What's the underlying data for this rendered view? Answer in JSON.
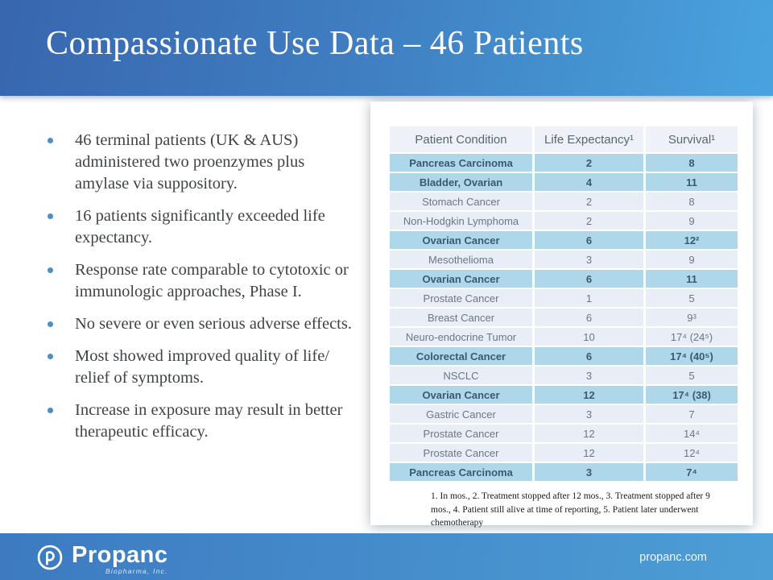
{
  "slide": {
    "title": "Compassionate Use Data – 46 Patients",
    "footer": {
      "brand": "Propanc",
      "brand_sub": "Biopharma, Inc.",
      "website": "propanc.com"
    },
    "colors": {
      "header_gradient_start": "#3866af",
      "header_gradient_end": "#49a3de",
      "footer_gradient_start": "#3d7ac0",
      "footer_gradient_end": "#4d9ed6",
      "highlight_row_bg": "#aed7ea",
      "plain_row_bg": "#e9eef6",
      "header_row_bg": "#eef1f8",
      "bullet_dot": "#4a8fca"
    }
  },
  "bullets": [
    "46 terminal patients (UK & AUS) administered two proenzymes plus amylase via suppository.",
    "16 patients significantly exceeded life expectancy.",
    "Response rate comparable to cytotoxic or immunologic approaches, Phase I.",
    "No severe or even serious adverse effects.",
    "Most showed improved quality of life/ relief of symptoms.",
    "Increase in exposure may result in better therapeutic efficacy."
  ],
  "table": {
    "headers": [
      "Patient Condition",
      "Life Expectancy¹",
      "Survival¹"
    ],
    "rows": [
      {
        "condition": "Pancreas Carcinoma",
        "life_expectancy": "2",
        "survival": "8",
        "highlight": true
      },
      {
        "condition": "Bladder, Ovarian",
        "life_expectancy": "4",
        "survival": "11",
        "highlight": true
      },
      {
        "condition": "Stomach Cancer",
        "life_expectancy": "2",
        "survival": "8",
        "highlight": false
      },
      {
        "condition": "Non-Hodgkin Lymphoma",
        "life_expectancy": "2",
        "survival": "9",
        "highlight": false
      },
      {
        "condition": "Ovarian Cancer",
        "life_expectancy": "6",
        "survival": "12²",
        "highlight": true
      },
      {
        "condition": "Mesothelioma",
        "life_expectancy": "3",
        "survival": "9",
        "highlight": false
      },
      {
        "condition": "Ovarian Cancer",
        "life_expectancy": "6",
        "survival": "11",
        "highlight": true
      },
      {
        "condition": "Prostate Cancer",
        "life_expectancy": "1",
        "survival": "5",
        "highlight": false
      },
      {
        "condition": "Breast Cancer",
        "life_expectancy": "6",
        "survival": "9³",
        "highlight": false
      },
      {
        "condition": "Neuro-endocrine Tumor",
        "life_expectancy": "10",
        "survival": "17⁴ (24⁵)",
        "highlight": false
      },
      {
        "condition": "Colorectal Cancer",
        "life_expectancy": "6",
        "survival": "17⁴ (40⁵)",
        "highlight": true
      },
      {
        "condition": "NSCLC",
        "life_expectancy": "3",
        "survival": "5",
        "highlight": false
      },
      {
        "condition": "Ovarian Cancer",
        "life_expectancy": "12",
        "survival": "17⁴ (38)",
        "highlight": true
      },
      {
        "condition": "Gastric Cancer",
        "life_expectancy": "3",
        "survival": "7",
        "highlight": false
      },
      {
        "condition": "Prostate Cancer",
        "life_expectancy": "12",
        "survival": "14⁴",
        "highlight": false
      },
      {
        "condition": "Prostate Cancer",
        "life_expectancy": "12",
        "survival": "12⁴",
        "highlight": false
      },
      {
        "condition": "Pancreas Carcinoma",
        "life_expectancy": "3",
        "survival": "7⁴",
        "highlight": true
      }
    ],
    "footnote": "1. In mos., 2. Treatment stopped after 12 mos., 3. Treatment stopped after 9 mos., 4. Patient still alive at time of reporting, 5. Patient later underwent chemotherapy"
  }
}
